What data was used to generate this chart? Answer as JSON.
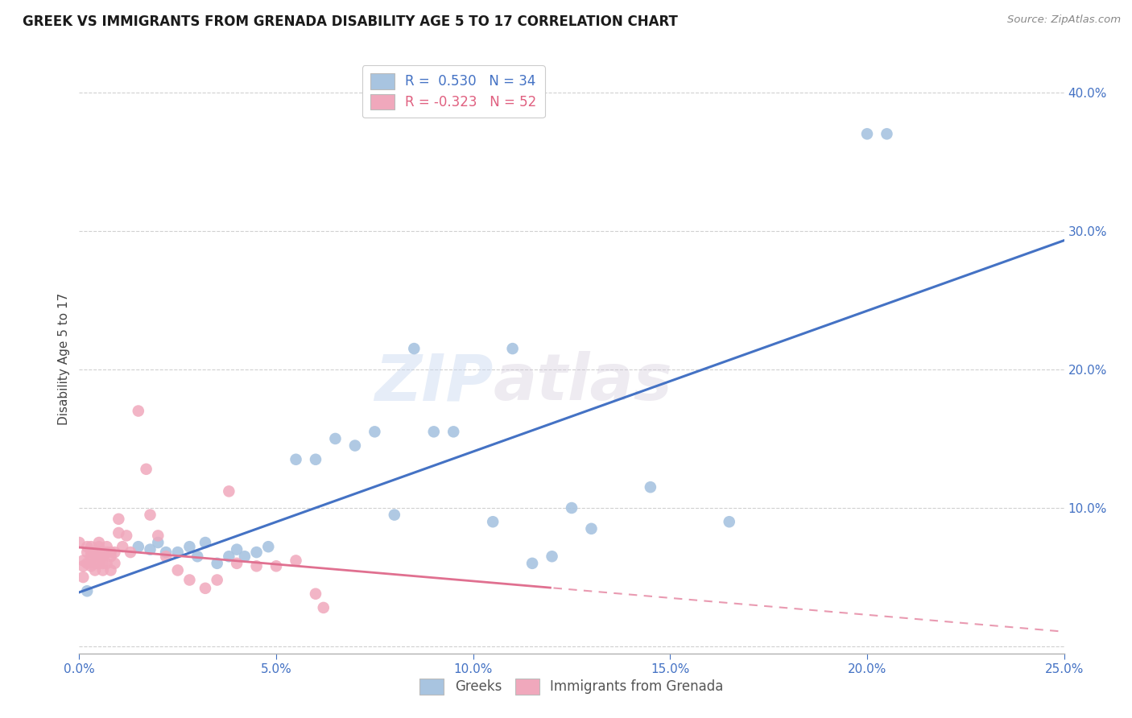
{
  "title": "GREEK VS IMMIGRANTS FROM GRENADA DISABILITY AGE 5 TO 17 CORRELATION CHART",
  "source": "Source: ZipAtlas.com",
  "ylabel": "Disability Age 5 to 17",
  "xlim": [
    0.0,
    0.25
  ],
  "ylim": [
    -0.005,
    0.42
  ],
  "x_ticks": [
    0.0,
    0.05,
    0.1,
    0.15,
    0.2,
    0.25
  ],
  "y_ticks_right": [
    0.1,
    0.2,
    0.3,
    0.4
  ],
  "blue_r": 0.53,
  "blue_n": 34,
  "pink_r": -0.323,
  "pink_n": 52,
  "blue_color": "#a8c4e0",
  "pink_color": "#f0a8bc",
  "trendline_blue_color": "#4472c4",
  "trendline_pink_color": "#e07090",
  "watermark_zip": "ZIP",
  "watermark_atlas": "atlas",
  "blue_points_x": [
    0.002,
    0.015,
    0.018,
    0.02,
    0.022,
    0.025,
    0.028,
    0.03,
    0.032,
    0.035,
    0.038,
    0.04,
    0.042,
    0.045,
    0.048,
    0.055,
    0.06,
    0.065,
    0.07,
    0.075,
    0.08,
    0.085,
    0.09,
    0.095,
    0.105,
    0.11,
    0.115,
    0.12,
    0.125,
    0.13,
    0.145,
    0.165,
    0.2,
    0.205
  ],
  "blue_points_y": [
    0.04,
    0.072,
    0.07,
    0.075,
    0.068,
    0.068,
    0.072,
    0.065,
    0.075,
    0.06,
    0.065,
    0.07,
    0.065,
    0.068,
    0.072,
    0.135,
    0.135,
    0.15,
    0.145,
    0.155,
    0.095,
    0.215,
    0.155,
    0.155,
    0.09,
    0.215,
    0.06,
    0.065,
    0.1,
    0.085,
    0.115,
    0.09,
    0.37,
    0.37
  ],
  "pink_points_x": [
    0.0,
    0.001,
    0.001,
    0.001,
    0.002,
    0.002,
    0.002,
    0.003,
    0.003,
    0.003,
    0.003,
    0.004,
    0.004,
    0.004,
    0.005,
    0.005,
    0.005,
    0.005,
    0.005,
    0.006,
    0.006,
    0.006,
    0.006,
    0.007,
    0.007,
    0.007,
    0.008,
    0.008,
    0.008,
    0.009,
    0.009,
    0.01,
    0.01,
    0.011,
    0.012,
    0.013,
    0.015,
    0.017,
    0.018,
    0.02,
    0.022,
    0.025,
    0.028,
    0.032,
    0.035,
    0.038,
    0.04,
    0.045,
    0.05,
    0.055,
    0.06,
    0.062
  ],
  "pink_points_y": [
    0.075,
    0.062,
    0.058,
    0.05,
    0.072,
    0.068,
    0.06,
    0.072,
    0.068,
    0.065,
    0.058,
    0.065,
    0.06,
    0.055,
    0.075,
    0.072,
    0.068,
    0.065,
    0.06,
    0.068,
    0.065,
    0.06,
    0.055,
    0.072,
    0.068,
    0.06,
    0.068,
    0.065,
    0.055,
    0.068,
    0.06,
    0.092,
    0.082,
    0.072,
    0.08,
    0.068,
    0.17,
    0.128,
    0.095,
    0.08,
    0.065,
    0.055,
    0.048,
    0.042,
    0.048,
    0.112,
    0.06,
    0.058,
    0.058,
    0.062,
    0.038,
    0.028
  ],
  "pink_trendline_x_solid_end": 0.12,
  "pink_trendline_x_dashed_start": 0.12
}
